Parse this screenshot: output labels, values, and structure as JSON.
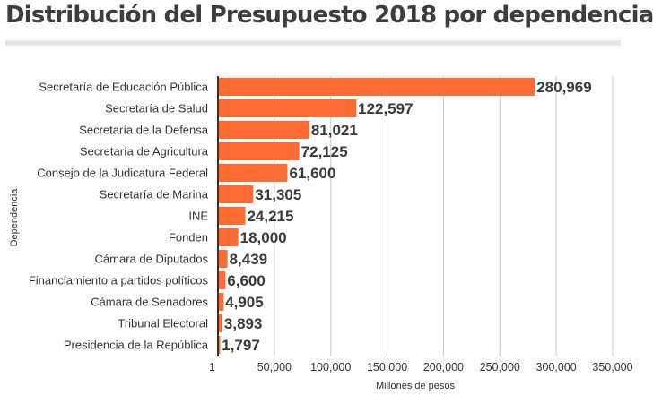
{
  "chart_data": {
    "type": "bar",
    "orientation": "horizontal",
    "title": "Distribución del Presupuesto 2018 por dependencia",
    "xlabel": "Millones de pesos",
    "ylabel": "Dependencia",
    "categories": [
      "Secretaría de Educación Pública",
      "Secretaría de Salud",
      "Secretaría de la Defensa",
      "Secretaría de Agricultura",
      "Consejo de la Judicatura Federal",
      "Secretaría de Marina",
      "INE",
      "Fonden",
      "Cámara de Diputados",
      "Financiamiento a partidos políticos",
      "Cámara de Senadores",
      "Tribunal Electoral",
      "Presidencia de la República"
    ],
    "values": [
      280969,
      122597,
      81021,
      72125,
      61600,
      31305,
      24215,
      18000,
      8439,
      6600,
      4905,
      3893,
      1797
    ],
    "value_labels": [
      "280,969",
      "122,597",
      "81,021",
      "72,125",
      "61,600",
      "31,305",
      "24,215",
      "18,000",
      "8,439",
      "6,600",
      "4,905",
      "3,893",
      "1,797"
    ],
    "x_ticks": [
      1,
      50000,
      100000,
      150000,
      200000,
      250000,
      300000,
      350000
    ],
    "x_tick_labels": [
      "1",
      "50,000",
      "100,000",
      "150,000",
      "200,000",
      "250,000",
      "300,000",
      "350,000"
    ],
    "xlim": [
      1,
      350000
    ],
    "grid": true,
    "bar_color": "#ff6b35",
    "grid_color": "#c8c8c8",
    "axis_color": "#333333"
  }
}
